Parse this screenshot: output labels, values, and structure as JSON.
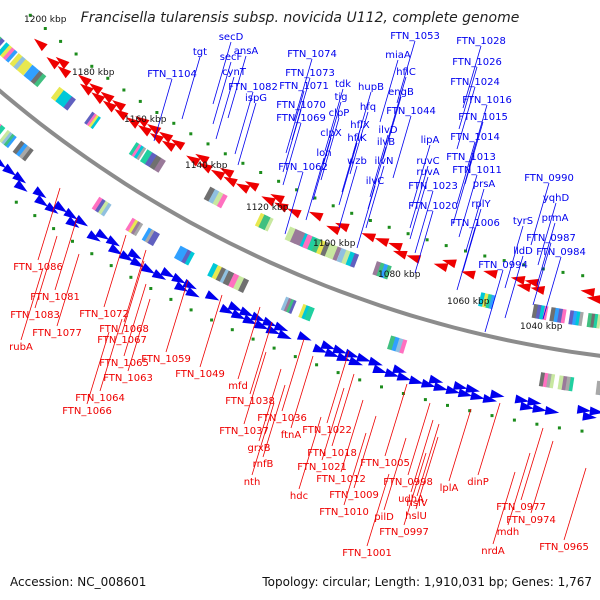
{
  "title": "Francisella tularensis subsp. novicida U112, complete genome",
  "footer": {
    "accession": "Accession: NC_008601",
    "summary": "Topology: circular; Length: 1,910,031 bp; Genes: 1,767"
  },
  "colors": {
    "forward_strand": "#0000ee",
    "reverse_strand": "#ee0000",
    "backbone": "#8c8c8c",
    "gc_dots": "#1c8c1c"
  },
  "kbp_marks": [
    "1200 kbp",
    "1180 kbp",
    "1160 kbp",
    "1140 kbp",
    "1120 kbp",
    "1100 kbp",
    "1080 kbp",
    "1060 kbp",
    "1040 kbp"
  ],
  "forward_labels": [
    "secD",
    "ansA",
    "tgt",
    "secF",
    "cynT",
    "FTN_1104",
    "FTN_1082",
    "ispG",
    "FTN_1074",
    "FTN_1073",
    "FTN_1071",
    "FTN_1070",
    "FTN_1069",
    "tdk",
    "tig",
    "clpP",
    "clpX",
    "lon",
    "FTN_1062",
    "FTN_1053",
    "miaA",
    "hflC",
    "hupB",
    "engB",
    "hfq",
    "FTN_1044",
    "hflX",
    "hflK",
    "ilvD",
    "ilvB",
    "wzb",
    "ilvN",
    "ilvC",
    "FTN_1028",
    "FTN_1026",
    "FTN_1024",
    "FTN_1016",
    "FTN_1015",
    "FTN_1014",
    "lipA",
    "ruvC",
    "ruvA",
    "FTN_1023",
    "FTN_1020",
    "FTN_1013",
    "FTN_1011",
    "prsA",
    "rplY",
    "FTN_1006",
    "FTN_0990",
    "yqhD",
    "tyrS",
    "prmA",
    "lldD",
    "FTN_0987",
    "FTN_0994",
    "FTN_0984"
  ],
  "reverse_labels": [
    "FTN_1086",
    "FTN_1081",
    "FTN_1083",
    "FTN_1077",
    "rubA",
    "FTN_1072",
    "FTN_1068",
    "FTN_1067",
    "FTN_1065",
    "FTN_1063",
    "FTN_1059",
    "FTN_1064",
    "FTN_1066",
    "FTN_1049",
    "mfd",
    "FTN_1038",
    "FTN_1036",
    "FTN_1037",
    "ftnA",
    "grxB",
    "rnfB",
    "nth",
    "FTN_1022",
    "FTN_1018",
    "FTN_1021",
    "FTN_1012",
    "hdc",
    "FTN_1009",
    "FTN_1010",
    "FTN_1005",
    "FTN_0998",
    "udhA",
    "pilD",
    "hslV",
    "hslU",
    "FTN_0997",
    "FTN_1001",
    "lplA",
    "dinP",
    "FTN_0977",
    "mdh",
    "FTN_0974",
    "nrdA",
    "FTN_0965"
  ]
}
